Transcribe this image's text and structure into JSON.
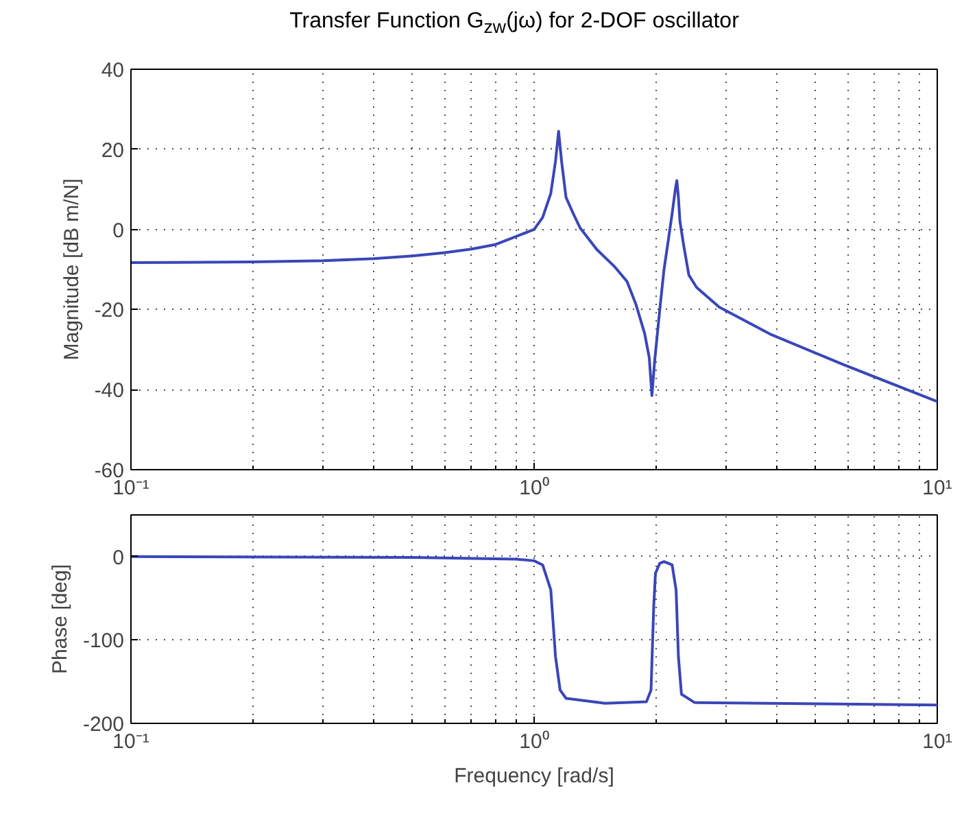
{
  "chart_data": [
    {
      "type": "line",
      "title": "Transfer Function G$_{zw}$(jω) for 2-DOF oscillator",
      "ylabel": "Magnitude [dB m/N]",
      "log": "x",
      "grid": true,
      "line_style": "solid",
      "xlim": [
        0.1,
        10
      ],
      "xticks": [
        {
          "value": 0.1,
          "label": "10⁻¹"
        },
        {
          "value": 1,
          "label": "10⁰"
        },
        {
          "value": 10,
          "label": "10¹"
        }
      ],
      "ylim": [
        -60,
        40
      ],
      "yticks": [
        -60,
        -40,
        -20,
        0,
        20,
        40
      ],
      "series": [
        {
          "color": "#3a46b8",
          "x": [
            0.1,
            0.2,
            0.3,
            0.4,
            0.5,
            0.6,
            0.7,
            0.8,
            0.9,
            1.0,
            1.05,
            1.1,
            1.13,
            1.15,
            1.17,
            1.2,
            1.25,
            1.3,
            1.43,
            1.58,
            1.7,
            1.79,
            1.88,
            1.93,
            1.96,
            1.99,
            2.05,
            2.1,
            2.15,
            2.2,
            2.24,
            2.26,
            2.28,
            2.3,
            2.35,
            2.42,
            2.53,
            2.88,
            3.88,
            5.83,
            10
          ],
          "values": [
            -8.3,
            -8.1,
            -7.8,
            -7.3,
            -6.6,
            -5.8,
            -4.9,
            -3.8,
            -1.8,
            0,
            3,
            9,
            17,
            24.5,
            17,
            8,
            4,
            0.4,
            -5,
            -9.2,
            -13,
            -18.8,
            -26,
            -32,
            -41.5,
            -33,
            -20,
            -10,
            -3,
            4,
            10,
            12.2,
            8,
            2,
            -4,
            -11.4,
            -14.5,
            -19.4,
            -26.3,
            -33.7,
            -43
          ]
        }
      ]
    },
    {
      "type": "line",
      "xlabel": "Frequency [rad/s]",
      "ylabel": "Phase [deg]",
      "log": "x",
      "grid": true,
      "line_style": "solid",
      "xlim": [
        0.1,
        10
      ],
      "xticks": [
        {
          "value": 0.1,
          "label": "10⁻¹"
        },
        {
          "value": 1,
          "label": "10⁰"
        },
        {
          "value": 10,
          "label": "10¹"
        }
      ],
      "ylim": [
        -200,
        50
      ],
      "yticks": [
        -200,
        -100,
        0
      ],
      "series": [
        {
          "color": "#3a46b8",
          "x": [
            0.1,
            0.5,
            0.9,
            1.0,
            1.05,
            1.1,
            1.13,
            1.16,
            1.2,
            1.5,
            1.9,
            1.95,
            1.98,
            2.0,
            2.05,
            2.1,
            2.2,
            2.25,
            2.28,
            2.32,
            2.5,
            10
          ],
          "values": [
            0,
            -1,
            -3,
            -5,
            -10,
            -40,
            -120,
            -160,
            -170,
            -176,
            -174,
            -160,
            -60,
            -20,
            -8,
            -6,
            -10,
            -40,
            -120,
            -165,
            -175,
            -178
          ]
        }
      ]
    }
  ]
}
